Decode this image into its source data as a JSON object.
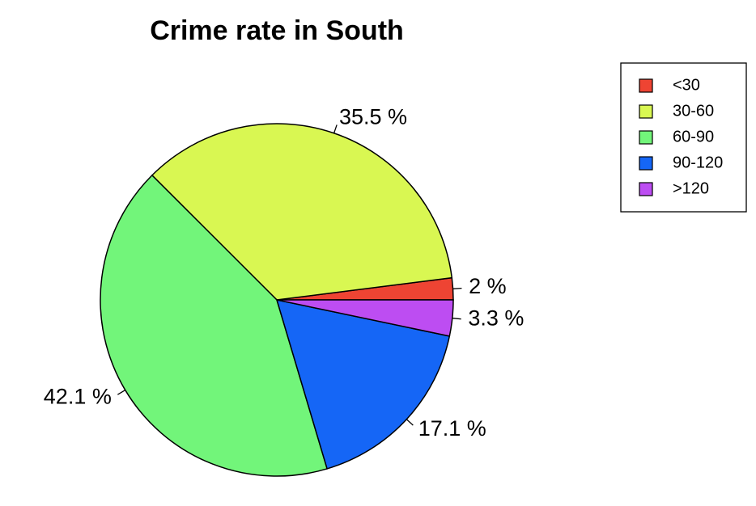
{
  "chart_data": {
    "type": "pie",
    "title": "Crime rate in South",
    "categories": [
      "<30",
      "30-60",
      "60-90",
      "90-120",
      ">120"
    ],
    "values": [
      2.0,
      35.5,
      42.1,
      17.1,
      3.3
    ],
    "labels": [
      "2 %",
      "35.5 %",
      "42.1 %",
      "17.1 %",
      "3.3 %"
    ],
    "colors": [
      "#EE4433",
      "#D9F752",
      "#72F57A",
      "#1566F6",
      "#BD4DF2"
    ],
    "start_angle_deg": 0,
    "direction": "counterclockwise",
    "legend": {
      "position": "top-right",
      "entries": [
        "<30",
        "30-60",
        "60-90",
        "90-120",
        ">120"
      ]
    }
  }
}
